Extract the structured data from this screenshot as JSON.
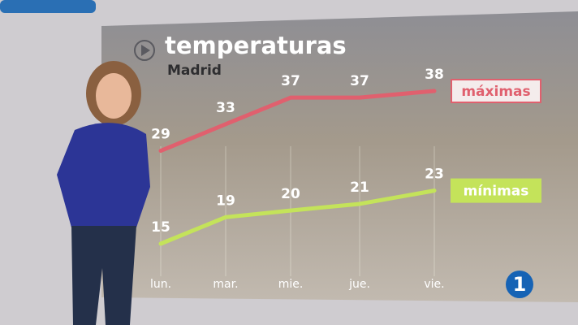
{
  "chart_data": {
    "type": "line",
    "title": "temperaturas",
    "subtitle": "Madrid",
    "categories": [
      "lun.",
      "mar.",
      "mie.",
      "jue.",
      "vie."
    ],
    "series": [
      {
        "name": "máximas",
        "color": "#e0606e",
        "values": [
          29,
          33,
          37,
          37,
          38
        ]
      },
      {
        "name": "mínimas",
        "color": "#c4e35a",
        "values": [
          15,
          19,
          20,
          21,
          23
        ]
      }
    ]
  },
  "channel_logo": "1"
}
